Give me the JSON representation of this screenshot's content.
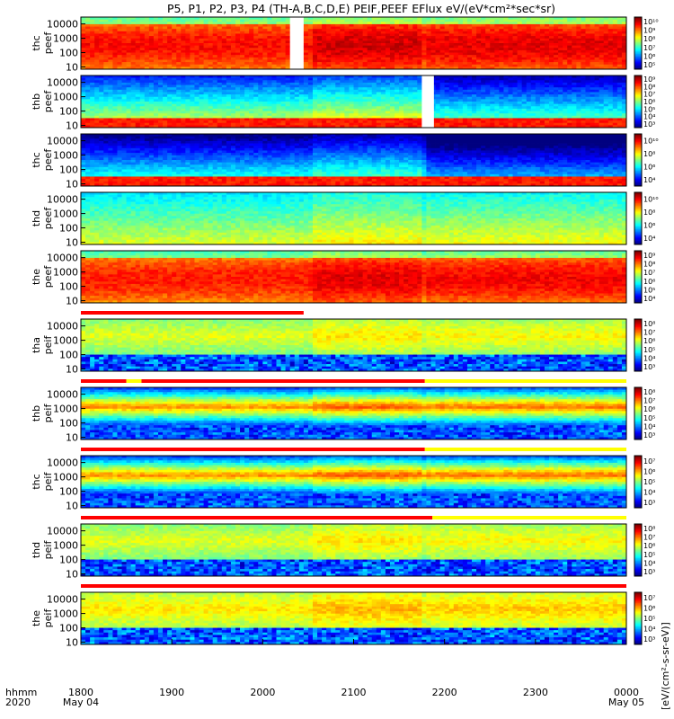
{
  "title": "P5, P1, P2, P3, P4 (TH-A,B,C,D,E) PEIF,PEEF EFlux eV/(eV*cm²*sec*sr)",
  "colorbar_label_fragment": "[eV/(cm²-s-sr-eV)]",
  "time_axis": {
    "row1_label": "hhmm",
    "row2_label": "2020",
    "ticks": [
      {
        "hhmm": "1800",
        "date": "May 04",
        "x": 0
      },
      {
        "hhmm": "1900",
        "date": "",
        "x": 60
      },
      {
        "hhmm": "2000",
        "date": "",
        "x": 120
      },
      {
        "hhmm": "2100",
        "date": "",
        "x": 180
      },
      {
        "hhmm": "2200",
        "date": "",
        "x": 240
      },
      {
        "hhmm": "2300",
        "date": "",
        "x": 300
      },
      {
        "hhmm": "0000",
        "date": "May 05",
        "x": 360
      }
    ]
  },
  "chart_data": [
    {
      "type": "heatmap",
      "ylabel": [
        "thc",
        "peef"
      ],
      "yticks": [
        "10000",
        "1000",
        "100",
        "10"
      ],
      "ylog": true,
      "yrange": [
        7,
        30000
      ],
      "x_minutes": [
        0,
        360
      ],
      "cbar_ticks": [
        "10⁵",
        "10⁶",
        "10⁷",
        "10⁸",
        "10⁹",
        "10¹⁰"
      ],
      "base_level": 0.72,
      "gaps": [
        [
          138,
          147
        ],
        [
          0,
          0
        ]
      ],
      "style": "ebright"
    },
    {
      "type": "heatmap",
      "ylabel": [
        "thb",
        "peef"
      ],
      "yticks": [
        "10000",
        "1000",
        "100",
        "10"
      ],
      "ylog": true,
      "yrange": [
        7,
        30000
      ],
      "x_minutes": [
        0,
        360
      ],
      "cbar_ticks": [
        "10³",
        "10⁴",
        "10⁵",
        "10⁶",
        "10⁷",
        "10⁸",
        "10⁹"
      ],
      "base_level": 0.45,
      "gaps": [
        [
          225,
          233
        ]
      ],
      "style": "elow"
    },
    {
      "type": "heatmap",
      "ylabel": [
        "thc",
        "peef"
      ],
      "yticks": [
        "10000",
        "1000",
        "100",
        "10"
      ],
      "ylog": true,
      "yrange": [
        7,
        30000
      ],
      "x_minutes": [
        0,
        360
      ],
      "cbar_ticks": [
        "10⁴",
        "10⁶",
        "10⁸",
        "10¹⁰"
      ],
      "base_level": 0.3,
      "gaps": [],
      "style": "elow"
    },
    {
      "type": "heatmap",
      "ylabel": [
        "thd",
        "peef"
      ],
      "yticks": [
        "10000",
        "1000",
        "100",
        "10"
      ],
      "ylog": true,
      "yrange": [
        7,
        30000
      ],
      "x_minutes": [
        0,
        360
      ],
      "cbar_ticks": [
        "10⁴",
        "10⁶",
        "10⁸",
        "10¹⁰"
      ],
      "base_level": 0.5,
      "gaps": [],
      "style": "emid"
    },
    {
      "type": "heatmap",
      "ylabel": [
        "the",
        "peef"
      ],
      "yticks": [
        "10000",
        "1000",
        "100",
        "10"
      ],
      "ylog": true,
      "yrange": [
        7,
        30000
      ],
      "x_minutes": [
        0,
        360
      ],
      "cbar_ticks": [
        "10⁴",
        "10⁵",
        "10⁶",
        "10⁷",
        "10⁸",
        "10⁹"
      ],
      "base_level": 0.7,
      "gaps": [],
      "style": "ebright"
    },
    {
      "type": "heatmap",
      "ylabel": [
        "tha",
        "peif"
      ],
      "yticks": [
        "10000",
        "1000",
        "100",
        "10"
      ],
      "ylog": true,
      "yrange": [
        7,
        30000
      ],
      "x_minutes": [
        0,
        360
      ],
      "cbar_ticks": [
        "10³",
        "10⁴",
        "10⁵",
        "10⁶",
        "10⁷",
        "10⁸"
      ],
      "base_level": 0.45,
      "gaps": [],
      "style": "ion"
    },
    {
      "type": "heatmap",
      "ylabel": [
        "thb",
        "peif"
      ],
      "yticks": [
        "10000",
        "1000",
        "100",
        "10"
      ],
      "ylog": true,
      "yrange": [
        7,
        30000
      ],
      "x_minutes": [
        0,
        360
      ],
      "cbar_ticks": [
        "10³",
        "10⁴",
        "10⁵",
        "10⁶",
        "10⁷",
        "10⁸"
      ],
      "base_level": 0.4,
      "gaps": [],
      "style": "ionband"
    },
    {
      "type": "heatmap",
      "ylabel": [
        "thc",
        "peif"
      ],
      "yticks": [
        "10000",
        "1000",
        "100",
        "10"
      ],
      "ylog": true,
      "yrange": [
        7,
        30000
      ],
      "x_minutes": [
        0,
        360
      ],
      "cbar_ticks": [
        "10³",
        "10⁴",
        "10⁵",
        "10⁶",
        "10⁷"
      ],
      "base_level": 0.4,
      "gaps": [],
      "style": "ionband"
    },
    {
      "type": "heatmap",
      "ylabel": [
        "thd",
        "peif"
      ],
      "yticks": [
        "10000",
        "1000",
        "100",
        "10"
      ],
      "ylog": true,
      "yrange": [
        7,
        30000
      ],
      "x_minutes": [
        0,
        360
      ],
      "cbar_ticks": [
        "10³",
        "10⁴",
        "10⁵",
        "10⁶",
        "10⁷",
        "10⁸"
      ],
      "base_level": 0.45,
      "gaps": [],
      "style": "ion"
    },
    {
      "type": "heatmap",
      "ylabel": [
        "the",
        "peif"
      ],
      "yticks": [
        "10000",
        "1000",
        "100",
        "10"
      ],
      "ylog": true,
      "yrange": [
        7,
        30000
      ],
      "x_minutes": [
        0,
        360
      ],
      "cbar_ticks": [
        "10³",
        "10⁴",
        "10⁵",
        "10⁶",
        "10⁷"
      ],
      "base_level": 0.5,
      "gaps": [],
      "style": "ion"
    }
  ],
  "mode_bars": [
    {
      "segments": [
        {
          "from": 0,
          "to": 360,
          "color": "#ff0000"
        }
      ]
    },
    {
      "segments": [
        {
          "from": 0,
          "to": 360,
          "color": "#ff0000"
        }
      ]
    },
    {
      "segments": [
        {
          "from": 0,
          "to": 360,
          "color": "#ff0000"
        }
      ]
    },
    {
      "segments": [
        {
          "from": 0,
          "to": 360,
          "color": "#ff0000"
        }
      ]
    },
    {
      "segments": [
        {
          "from": 0,
          "to": 147,
          "color": "#ff0000"
        }
      ]
    },
    {
      "segments": [
        {
          "from": 0,
          "to": 30,
          "color": "#ff0000"
        },
        {
          "from": 30,
          "to": 40,
          "color": "#ffff00"
        },
        {
          "from": 40,
          "to": 227,
          "color": "#ff0000"
        },
        {
          "from": 227,
          "to": 360,
          "color": "#ffff00"
        }
      ]
    },
    {
      "segments": [
        {
          "from": 0,
          "to": 227,
          "color": "#ff0000"
        },
        {
          "from": 227,
          "to": 360,
          "color": "#ffff00"
        }
      ]
    },
    {
      "segments": [
        {
          "from": 0,
          "to": 232,
          "color": "#ff0000"
        },
        {
          "from": 232,
          "to": 360,
          "color": "#ffff00"
        }
      ]
    },
    {
      "segments": [
        {
          "from": 0,
          "to": 360,
          "color": "#ff0000"
        }
      ]
    }
  ]
}
